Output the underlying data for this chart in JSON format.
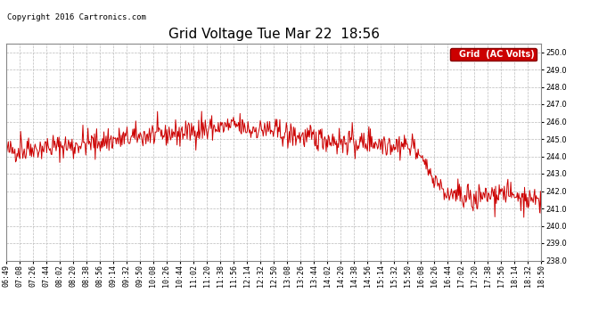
{
  "title": "Grid Voltage Tue Mar 22  18:56",
  "copyright": "Copyright 2016 Cartronics.com",
  "legend_label": "Grid  (AC Volts)",
  "legend_bg": "#cc0000",
  "legend_fg": "#ffffff",
  "line_color": "#cc0000",
  "background_color": "#ffffff",
  "plot_bg": "#ffffff",
  "grid_color": "#bbbbbb",
  "ylim": [
    238.0,
    250.5
  ],
  "yticks": [
    238.0,
    239.0,
    240.0,
    241.0,
    242.0,
    243.0,
    244.0,
    245.0,
    246.0,
    247.0,
    248.0,
    249.0,
    250.0
  ],
  "xtick_labels": [
    "06:49",
    "07:08",
    "07:26",
    "07:44",
    "08:02",
    "08:20",
    "08:38",
    "08:56",
    "09:14",
    "09:32",
    "09:50",
    "10:08",
    "10:26",
    "10:44",
    "11:02",
    "11:20",
    "11:38",
    "11:56",
    "12:14",
    "12:32",
    "12:50",
    "13:08",
    "13:26",
    "13:44",
    "14:02",
    "14:20",
    "14:38",
    "14:56",
    "15:14",
    "15:32",
    "15:50",
    "16:08",
    "16:26",
    "16:44",
    "17:02",
    "17:20",
    "17:38",
    "17:56",
    "18:14",
    "18:32",
    "18:50"
  ],
  "title_fontsize": 11,
  "copyright_fontsize": 6.5,
  "tick_fontsize": 6,
  "legend_fontsize": 7
}
